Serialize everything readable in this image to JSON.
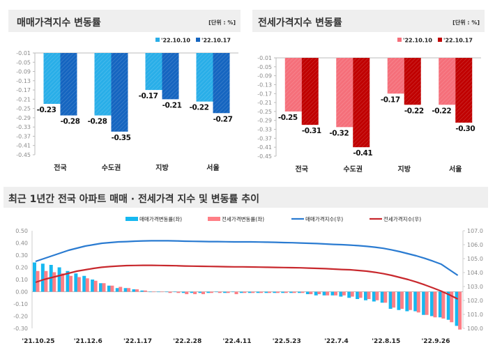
{
  "chart_data": [
    {
      "type": "bar",
      "title": "매매가격지수 변동률",
      "unit": "[단위 : %]",
      "categories": [
        "전국",
        "수도권",
        "지방",
        "서울"
      ],
      "series": [
        {
          "name": "'22.10.10",
          "values": [
            -0.23,
            -0.28,
            -0.17,
            -0.22
          ],
          "color": "#29aee8"
        },
        {
          "name": "'22.10.17",
          "values": [
            -0.28,
            -0.35,
            -0.21,
            -0.27
          ],
          "color": "#1565c0"
        }
      ],
      "yticks": [
        "-0.01",
        "-0.05",
        "-0.09",
        "-0.13",
        "-0.17",
        "-0.21",
        "-0.25",
        "-0.29",
        "-0.33",
        "-0.37",
        "-0.41",
        "-0.45"
      ],
      "ylim": [
        -0.45,
        -0.01
      ],
      "legend": "top-right",
      "grid": false
    },
    {
      "type": "bar",
      "title": "전세가격지수 변동률",
      "unit": "[단위 : %]",
      "categories": [
        "전국",
        "수도권",
        "지방",
        "서울"
      ],
      "series": [
        {
          "name": "'22.10.10",
          "values": [
            -0.25,
            -0.32,
            -0.17,
            -0.22
          ],
          "color": "#f56f7a"
        },
        {
          "name": "'22.10.17",
          "values": [
            -0.31,
            -0.41,
            -0.22,
            -0.3
          ],
          "color": "#c00000"
        }
      ],
      "yticks": [
        "-0.01",
        "-0.05",
        "-0.09",
        "-0.13",
        "-0.17",
        "-0.21",
        "-0.25",
        "-0.29",
        "-0.33",
        "-0.37",
        "-0.41",
        "-0.45"
      ],
      "ylim": [
        -0.45,
        -0.01
      ],
      "legend": "top-right",
      "grid": false
    },
    {
      "type": "bar+line",
      "title": "최근 1년간 전국 아파트 매매 · 전세가격 지수 및 변동률 추이",
      "xticks": [
        "'21.10.25",
        "'21.12.6",
        "'22.1.17",
        "'22.2.28",
        "'22.4.11",
        "'22.5.23",
        "'22.7.4",
        "'22.8.15",
        "'22.9.26"
      ],
      "y_left_ticks": [
        "0.50",
        "0.40",
        "0.30",
        "0.20",
        "0.10",
        "0.00",
        "-0.10",
        "-0.20",
        "-0.30"
      ],
      "y_left_lim": [
        -0.3,
        0.5
      ],
      "y_right_ticks": [
        "107.0",
        "106.0",
        "105.0",
        "104.0",
        "103.0",
        "102.0",
        "101.0",
        "100.0"
      ],
      "y_right_lim": [
        100.0,
        107.0
      ],
      "legend": "top",
      "series": [
        {
          "name": "매매가격변동률(좌)",
          "kind": "bar",
          "axis": "left",
          "color": "#17b8f0",
          "values": [
            0.24,
            0.23,
            0.22,
            0.2,
            0.17,
            0.15,
            0.13,
            0.1,
            0.07,
            0.05,
            0.03,
            0.03,
            0.02,
            0.01,
            0.0,
            0.0,
            0.0,
            0.0,
            -0.01,
            -0.01,
            -0.01,
            -0.01,
            0.0,
            -0.01,
            0.0,
            -0.01,
            -0.01,
            -0.01,
            -0.01,
            -0.01,
            -0.01,
            -0.01,
            -0.01,
            -0.02,
            -0.03,
            -0.03,
            -0.03,
            -0.04,
            -0.05,
            -0.06,
            -0.07,
            -0.08,
            -0.09,
            -0.14,
            -0.15,
            -0.16,
            -0.16,
            -0.19,
            -0.2,
            -0.21,
            -0.23,
            -0.28
          ]
        },
        {
          "name": "전세가격변동률(좌)",
          "kind": "bar",
          "axis": "left",
          "color": "#ff7f86",
          "values": [
            0.17,
            0.17,
            0.16,
            0.15,
            0.13,
            0.12,
            0.11,
            0.09,
            0.07,
            0.05,
            0.04,
            0.03,
            0.02,
            0.01,
            0.0,
            0.0,
            -0.01,
            -0.01,
            -0.02,
            -0.02,
            -0.02,
            -0.01,
            -0.01,
            -0.01,
            -0.02,
            -0.01,
            -0.01,
            -0.01,
            -0.01,
            -0.01,
            -0.01,
            -0.01,
            -0.01,
            -0.02,
            -0.02,
            -0.03,
            -0.03,
            -0.03,
            -0.04,
            -0.05,
            -0.06,
            -0.07,
            -0.09,
            -0.13,
            -0.14,
            -0.15,
            -0.17,
            -0.19,
            -0.21,
            -0.22,
            -0.25,
            -0.31
          ]
        },
        {
          "name": "매매가격지수(우)",
          "kind": "line",
          "axis": "right",
          "color": "#2a7bd1",
          "values": [
            104.8,
            105.0,
            105.2,
            105.4,
            105.6,
            105.75,
            105.9,
            106.0,
            106.1,
            106.15,
            106.2,
            106.22,
            106.25,
            106.27,
            106.28,
            106.28,
            106.28,
            106.27,
            106.25,
            106.24,
            106.23,
            106.22,
            106.22,
            106.21,
            106.2,
            106.2,
            106.2,
            106.19,
            106.18,
            106.17,
            106.15,
            106.14,
            106.12,
            106.1,
            106.08,
            106.05,
            106.02,
            106.0,
            105.97,
            105.93,
            105.88,
            105.82,
            105.74,
            105.63,
            105.5,
            105.35,
            105.2,
            105.02,
            104.82,
            104.6,
            104.2,
            103.8
          ]
        },
        {
          "name": "전세가격지수(우)",
          "kind": "line",
          "axis": "right",
          "color": "#c8282d",
          "values": [
            103.3,
            103.5,
            103.65,
            103.8,
            103.95,
            104.1,
            104.2,
            104.3,
            104.38,
            104.43,
            104.47,
            104.5,
            104.51,
            104.52,
            104.52,
            104.51,
            104.5,
            104.49,
            104.47,
            104.46,
            104.45,
            104.44,
            104.43,
            104.42,
            104.41,
            104.41,
            104.4,
            104.39,
            104.38,
            104.37,
            104.36,
            104.35,
            104.34,
            104.32,
            104.3,
            104.28,
            104.25,
            104.22,
            104.2,
            104.15,
            104.1,
            104.02,
            103.92,
            103.8,
            103.65,
            103.5,
            103.32,
            103.12,
            102.9,
            102.67,
            102.4,
            102.1
          ]
        }
      ]
    }
  ]
}
